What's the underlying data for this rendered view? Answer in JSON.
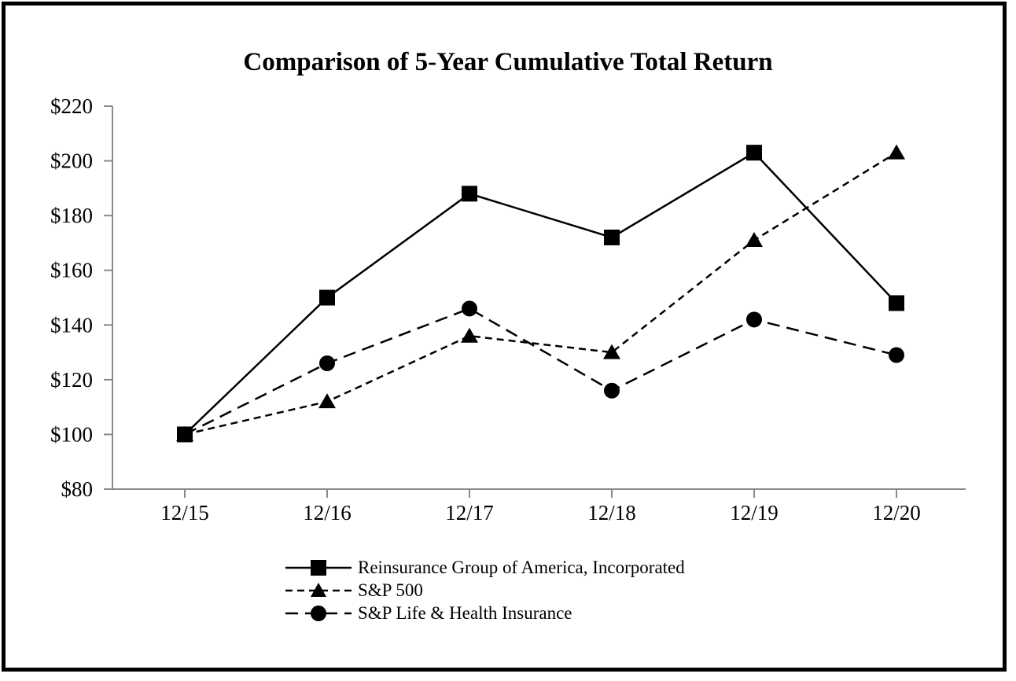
{
  "chart": {
    "title": "Comparison of 5-Year Cumulative Total Return"
  },
  "chart_data": {
    "type": "line",
    "title": "Comparison of 5-Year Cumulative Total Return",
    "xlabel": "",
    "ylabel": "",
    "categories": [
      "12/15",
      "12/16",
      "12/17",
      "12/18",
      "12/19",
      "12/20"
    ],
    "series": [
      {
        "name": "Reinsurance Group of America, Incorporated",
        "marker": "square",
        "line_style": "solid",
        "values": [
          100,
          150,
          188,
          172,
          203,
          148
        ]
      },
      {
        "name": "S&P 500",
        "marker": "triangle",
        "line_style": "short-dash",
        "values": [
          100,
          112,
          136,
          130,
          171,
          203
        ]
      },
      {
        "name": "S&P Life & Health Insurance",
        "marker": "circle",
        "line_style": "long-dash",
        "values": [
          100,
          126,
          146,
          116,
          142,
          129
        ]
      }
    ],
    "y_axis": {
      "min": 80,
      "max": 220,
      "step": 20,
      "tick_prefix": "$",
      "tick_labels": [
        "$80",
        "$100",
        "$120",
        "$140",
        "$160",
        "$180",
        "$200",
        "$220"
      ]
    },
    "grid": false,
    "legend_position": "bottom",
    "colors": {
      "series": "#000000",
      "axis": "#8a8a8a",
      "text": "#000000",
      "background": "#ffffff",
      "border": "#000000"
    }
  }
}
